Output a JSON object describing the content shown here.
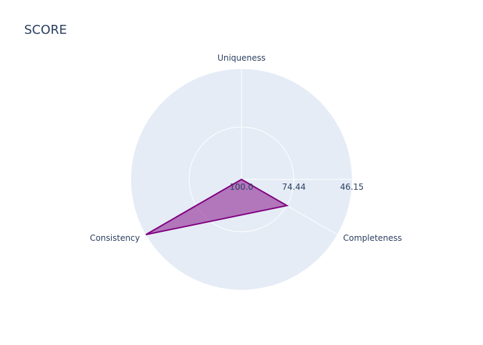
{
  "chart_data": {
    "type": "radar",
    "title": "SCORE",
    "axes": [
      "Uniqueness",
      "Completeness",
      "Consistency"
    ],
    "radial_ticks": [
      "100.0",
      "74.44",
      "46.15"
    ],
    "radial_range": [
      100.0,
      46.15
    ],
    "series": [
      {
        "values": [
          100.0,
          74.44,
          46.15
        ],
        "color": "#800080"
      }
    ],
    "background_color": "#E5ECF6",
    "grid_color": "#FFFFFF",
    "fill_color": "#800080",
    "fill_opacity": 0.5,
    "legend": "none"
  }
}
